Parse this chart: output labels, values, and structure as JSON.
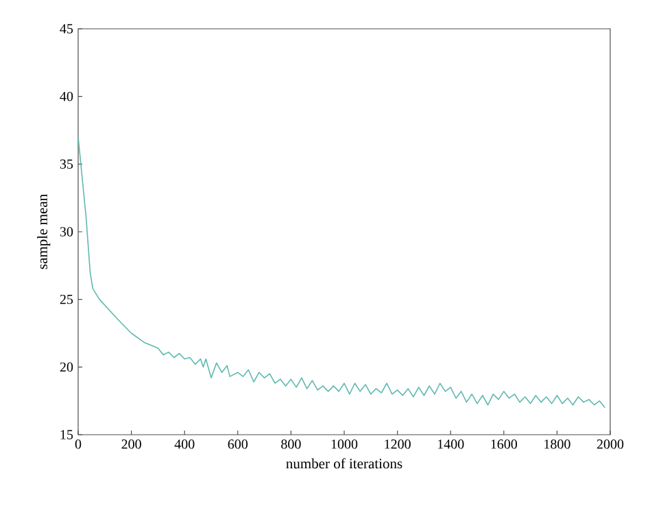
{
  "chart_data": {
    "type": "line",
    "xlabel": "number of iterations",
    "ylabel": "sample mean",
    "xlim": [
      0,
      2000
    ],
    "ylim": [
      15,
      45
    ],
    "xticks": [
      0,
      200,
      400,
      600,
      800,
      1000,
      1200,
      1400,
      1600,
      1800,
      2000
    ],
    "yticks": [
      15,
      20,
      25,
      30,
      35,
      40,
      45
    ],
    "grid": false,
    "series": [
      {
        "color": "#5fb8b0",
        "x": [
          0,
          10,
          30,
          45,
          55,
          80,
          150,
          200,
          250,
          300,
          320,
          340,
          360,
          380,
          400,
          420,
          440,
          460,
          470,
          480,
          500,
          520,
          540,
          560,
          570,
          600,
          620,
          640,
          660,
          680,
          700,
          720,
          740,
          760,
          780,
          800,
          820,
          840,
          860,
          880,
          900,
          920,
          940,
          960,
          980,
          1000,
          1020,
          1040,
          1060,
          1080,
          1100,
          1120,
          1140,
          1160,
          1180,
          1200,
          1220,
          1240,
          1260,
          1280,
          1300,
          1320,
          1340,
          1360,
          1380,
          1400,
          1420,
          1440,
          1460,
          1480,
          1500,
          1520,
          1540,
          1560,
          1580,
          1600,
          1620,
          1640,
          1660,
          1680,
          1700,
          1720,
          1740,
          1760,
          1780,
          1800,
          1820,
          1840,
          1860,
          1880,
          1900,
          1920,
          1940,
          1960,
          1980
        ],
        "values": [
          37,
          35,
          31,
          27,
          25.8,
          25,
          23.5,
          22.5,
          21.8,
          21.4,
          20.9,
          21.1,
          20.7,
          21.0,
          20.6,
          20.7,
          20.2,
          20.6,
          20.0,
          20.6,
          19.2,
          20.3,
          19.6,
          20.1,
          19.3,
          19.6,
          19.3,
          19.8,
          18.9,
          19.6,
          19.2,
          19.5,
          18.8,
          19.1,
          18.6,
          19.1,
          18.5,
          19.2,
          18.4,
          19.0,
          18.3,
          18.6,
          18.2,
          18.6,
          18.2,
          18.8,
          18.0,
          18.8,
          18.2,
          18.7,
          18.0,
          18.4,
          18.1,
          18.8,
          18.0,
          18.3,
          17.9,
          18.4,
          17.8,
          18.5,
          17.9,
          18.6,
          18.0,
          18.8,
          18.2,
          18.5,
          17.7,
          18.2,
          17.4,
          18.0,
          17.3,
          17.9,
          17.2,
          18.0,
          17.6,
          18.2,
          17.7,
          18.0,
          17.4,
          17.8,
          17.3,
          17.9,
          17.4,
          17.8,
          17.3,
          17.9,
          17.3,
          17.7,
          17.2,
          17.8,
          17.4,
          17.6,
          17.2,
          17.5,
          17.0
        ]
      }
    ]
  }
}
